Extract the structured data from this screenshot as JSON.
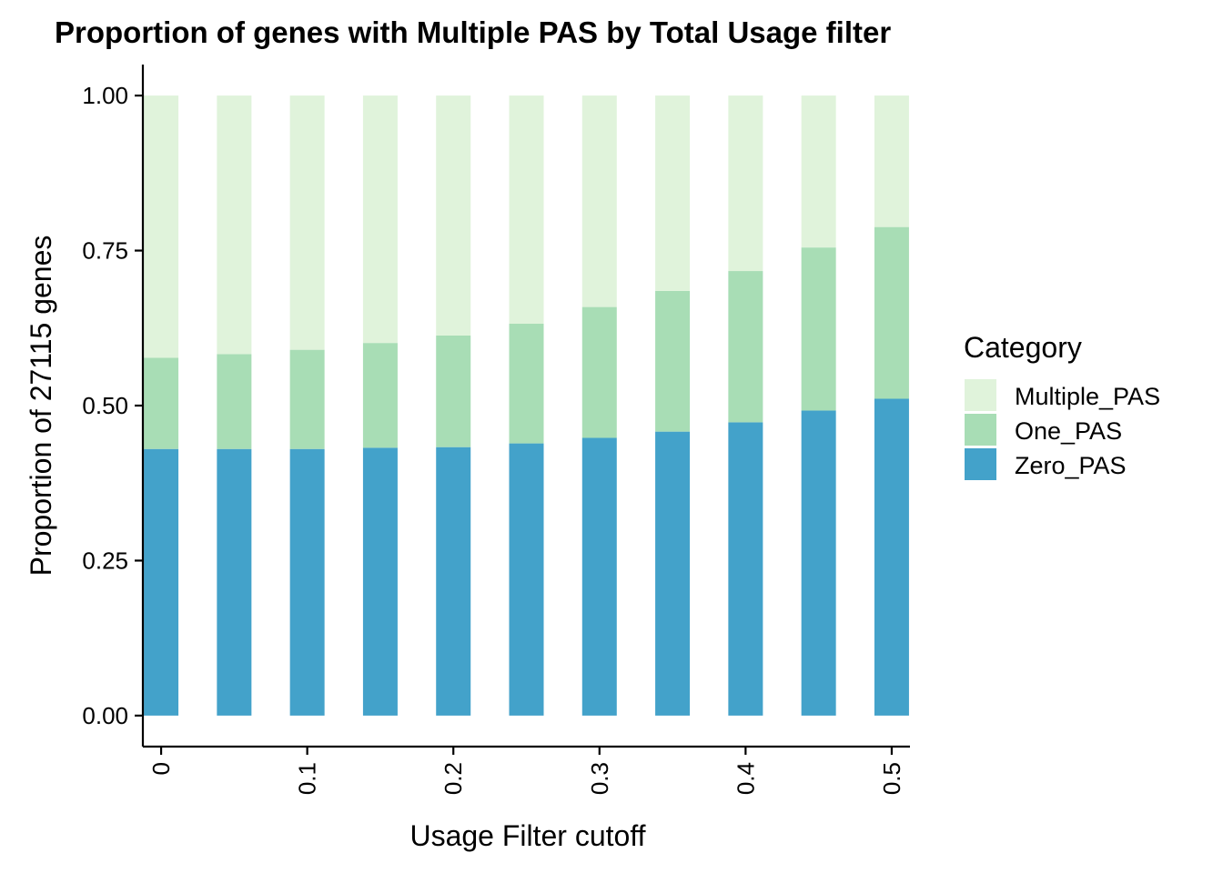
{
  "chart_data": {
    "type": "bar",
    "stacked": true,
    "title": "Proportion of genes with Multiple PAS by Total Usage filter",
    "xlabel": "Usage Filter cutoff",
    "ylabel": "Proportion of 27115 genes",
    "x": [
      0,
      0.05,
      0.1,
      0.15,
      0.2,
      0.25,
      0.3,
      0.35,
      0.4,
      0.45,
      0.5
    ],
    "x_ticks": [
      0,
      0.1,
      0.2,
      0.3,
      0.4,
      0.5
    ],
    "x_tick_labels": [
      "0",
      "0.1",
      "0.2",
      "0.3",
      "0.4",
      "0.5"
    ],
    "xlim": [
      -0.0125,
      0.5125
    ],
    "y_ticks": [
      0,
      0.25,
      0.5,
      0.75,
      1.0
    ],
    "y_tick_labels": [
      "0.00",
      "0.25",
      "0.50",
      "0.75",
      "1.00"
    ],
    "ylim": [
      -0.05,
      1.05
    ],
    "grid": false,
    "legend": {
      "title": "Category",
      "placement": "right",
      "entries": [
        "Multiple_PAS",
        "One_PAS",
        "Zero_PAS"
      ]
    },
    "series": [
      {
        "name": "Zero_PAS",
        "color": "#43a2ca",
        "values": [
          0.43,
          0.43,
          0.43,
          0.432,
          0.433,
          0.439,
          0.448,
          0.458,
          0.473,
          0.492,
          0.511
        ]
      },
      {
        "name": "One_PAS",
        "color": "#a8ddb5",
        "values": [
          0.147,
          0.153,
          0.16,
          0.169,
          0.18,
          0.193,
          0.211,
          0.227,
          0.244,
          0.263,
          0.277
        ]
      },
      {
        "name": "Multiple_PAS",
        "color": "#e0f3db",
        "values": [
          0.423,
          0.417,
          0.41,
          0.399,
          0.387,
          0.368,
          0.341,
          0.315,
          0.283,
          0.245,
          0.212
        ]
      }
    ]
  }
}
